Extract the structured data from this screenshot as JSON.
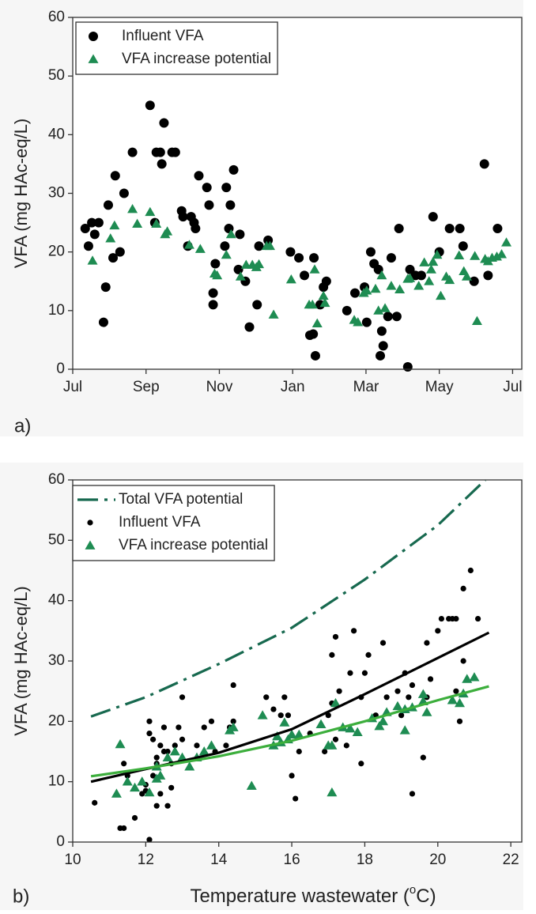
{
  "chart_data": [
    {
      "type": "scatter",
      "label": "a)",
      "ylabel": "VFA (mg HAc-eq/L)",
      "xlim": [
        0,
        12.25
      ],
      "ylim": [
        0,
        60
      ],
      "xticks": [
        {
          "value": 0,
          "label": "Jul"
        },
        {
          "value": 2,
          "label": "Sep"
        },
        {
          "value": 4,
          "label": "Nov"
        },
        {
          "value": 6,
          "label": "Jan"
        },
        {
          "value": 8,
          "label": "Mar"
        },
        {
          "value": 10,
          "label": "May"
        },
        {
          "value": 12,
          "label": "Jul"
        }
      ],
      "yticks": [
        0,
        10,
        20,
        30,
        40,
        50,
        60
      ],
      "legend": "upper left",
      "series": [
        {
          "name": "Influent VFA",
          "kind": "circle",
          "color": "#000000",
          "x": [
            0.34,
            0.43,
            0.52,
            0.6,
            0.71,
            0.84,
            0.9,
            0.97,
            1.1,
            1.16,
            1.29,
            1.4,
            1.63,
            2.11,
            2.24,
            2.28,
            2.39,
            2.43,
            2.49,
            2.71,
            2.8,
            2.97,
            3.01,
            3.14,
            3.23,
            3.31,
            3.35,
            3.44,
            3.66,
            3.72,
            3.83,
            3.83,
            3.89,
            4.15,
            4.19,
            4.26,
            4.3,
            4.39,
            4.52,
            4.56,
            4.71,
            4.82,
            5.03,
            5.08,
            5.33,
            5.94,
            6.17,
            6.32,
            6.47,
            6.56,
            6.58,
            6.62,
            6.75,
            6.84,
            6.92,
            7.48,
            7.7,
            7.96,
            8.02,
            8.13,
            8.22,
            8.34,
            8.39,
            8.43,
            8.47,
            8.6,
            8.69,
            8.84,
            8.9,
            9.14,
            9.2,
            9.35,
            9.51,
            9.83,
            10.0,
            10.28,
            10.56,
            10.65,
            10.95,
            11.23,
            11.33,
            11.59
          ],
          "values": [
            24,
            21,
            25,
            23,
            25,
            8,
            14,
            28,
            19,
            33,
            20,
            30,
            37,
            45,
            25,
            37,
            37,
            35,
            42,
            37,
            37,
            27,
            26,
            21,
            26,
            25,
            24,
            33,
            31,
            28,
            13,
            11,
            18,
            21,
            31,
            24,
            28,
            34,
            17,
            23,
            15,
            7.2,
            11,
            21,
            22,
            20,
            19,
            16,
            5.8,
            6,
            19,
            2.3,
            11,
            14,
            15,
            10,
            13,
            14,
            8,
            20,
            18,
            17,
            2.3,
            6.5,
            4,
            9,
            19,
            9,
            24,
            0.4,
            17,
            16,
            16,
            26,
            20,
            24,
            24,
            21,
            15,
            35,
            16,
            24
          ]
        },
        {
          "name": "VFA increase potential",
          "kind": "triangle",
          "color": "#1e8c52",
          "x": [
            0.54,
            1.03,
            1.14,
            1.63,
            1.76,
            2.11,
            2.28,
            2.52,
            2.58,
            3.18,
            3.48,
            3.87,
            3.94,
            4.19,
            4.32,
            4.58,
            4.73,
            4.9,
            5.01,
            5.08,
            5.29,
            5.38,
            5.48,
            5.96,
            6.45,
            6.54,
            6.6,
            6.67,
            6.84,
            6.88,
            7.68,
            7.78,
            7.94,
            8.02,
            8.26,
            8.34,
            8.43,
            8.52,
            8.69,
            8.92,
            9.14,
            9.2,
            9.44,
            9.59,
            9.72,
            9.78,
            9.83,
            9.94,
            10.04,
            10.19,
            10.28,
            10.54,
            10.67,
            10.75,
            10.97,
            11.03,
            11.25,
            11.33,
            11.44,
            11.57,
            11.7,
            11.83
          ],
          "values": [
            18.5,
            22.3,
            24.5,
            27.3,
            24.8,
            26.8,
            24.8,
            23,
            23.5,
            21.2,
            20.5,
            16.3,
            16,
            19.5,
            23,
            15.8,
            17.8,
            17.8,
            17.4,
            17.9,
            21,
            21,
            9.3,
            15.3,
            11,
            11,
            17,
            7.8,
            12.5,
            11.3,
            8.4,
            8,
            13,
            13.4,
            13.7,
            10,
            16,
            10.4,
            14.2,
            13.6,
            15.4,
            15.5,
            14.2,
            18.2,
            15,
            17,
            18.3,
            19.5,
            12.5,
            15.8,
            15.2,
            19.4,
            16.7,
            15.8,
            19.3,
            8.2,
            18.8,
            18.4,
            19,
            19.2,
            19.6,
            21.6
          ]
        }
      ]
    },
    {
      "type": "scatter",
      "label": "b)",
      "ylabel": "VFA (mg HAc-eq/L)",
      "xlabel": [
        "Temperature wastewater (",
        "o",
        "C)"
      ],
      "xlim": [
        10,
        22.3
      ],
      "ylim": [
        0,
        60
      ],
      "xticks": [
        10,
        12,
        14,
        16,
        18,
        20,
        22
      ],
      "yticks": [
        0,
        10,
        20,
        30,
        40,
        50,
        60
      ],
      "legend": "upper left",
      "series": [
        {
          "name": "Total VFA potential",
          "kind": "line",
          "dash": "dashdot",
          "color": "#17694f",
          "x": [
            10.5,
            12,
            14,
            16,
            18,
            20,
            21.3
          ],
          "values": [
            20.8,
            24,
            29.5,
            35.5,
            43.5,
            52.5,
            60
          ]
        },
        {
          "name": "Influent VFA",
          "kind": "dot",
          "color": "#000000",
          "x": [
            10.6,
            11.3,
            11.4,
            11.4,
            11.5,
            11.7,
            11.9,
            12.0,
            12.0,
            12.1,
            12.1,
            12.1,
            12.2,
            12.2,
            12.3,
            12.3,
            12.3,
            12.4,
            12.4,
            12.5,
            12.5,
            12.6,
            12.6,
            12.7,
            12.7,
            12.8,
            12.9,
            13.0,
            13.0,
            13.4,
            13.6,
            13.8,
            13.9,
            14.2,
            14.3,
            14.4,
            14.4,
            15.3,
            15.5,
            15.7,
            15.8,
            15.9,
            16.0,
            16.1,
            16.2,
            16.5,
            16.9,
            17.0,
            17.1,
            17.1,
            17.2,
            17.2,
            17.3,
            17.5,
            17.6,
            17.7,
            17.9,
            17.9,
            18.0,
            18.1,
            18.3,
            18.5,
            18.6,
            18.9,
            19.0,
            19.1,
            19.2,
            19.3,
            19.3,
            19.6,
            19.7,
            19.7,
            19.8,
            20.0,
            20.1,
            20.3,
            20.4,
            20.5,
            20.5,
            20.6,
            20.7,
            20.7,
            20.9,
            21.1
          ],
          "values": [
            6.5,
            2.3,
            2.3,
            13,
            11,
            4,
            8,
            9.5,
            8.5,
            20,
            0.4,
            18,
            17,
            11,
            14,
            6,
            13,
            8,
            16,
            15,
            19,
            15,
            6,
            9,
            13,
            16,
            19,
            24,
            17,
            16,
            19,
            20,
            15,
            16,
            19,
            26,
            20,
            24,
            22,
            21,
            24,
            21,
            11,
            7.2,
            15,
            18,
            15,
            21,
            23,
            31,
            34,
            17,
            25,
            16,
            28,
            35,
            24,
            13,
            28,
            31,
            21,
            33,
            24,
            25,
            21,
            28,
            24,
            8,
            26,
            14,
            24,
            33,
            27,
            35,
            37,
            37,
            37,
            37,
            25,
            20,
            42,
            30,
            45,
            37
          ]
        },
        {
          "name": "VFA increase potential",
          "kind": "triangle",
          "color": "#1e8c52",
          "x": [
            11.2,
            11.3,
            11.5,
            11.7,
            11.9,
            12.1,
            12.3,
            12.3,
            12.4,
            12.6,
            12.8,
            13.0,
            13.2,
            13.4,
            13.6,
            13.8,
            14.3,
            14.4,
            14.9,
            15.2,
            15.5,
            15.6,
            15.7,
            15.8,
            15.9,
            16.0,
            16.2,
            16.8,
            17.0,
            17.1,
            17.1,
            17.2,
            17.4,
            17.6,
            17.8,
            18.2,
            18.4,
            18.5,
            18.6,
            18.9,
            19.1,
            19.1,
            19.3,
            19.6,
            19.6,
            19.7,
            20.4,
            20.6,
            20.7,
            20.8,
            21.0
          ],
          "values": [
            8,
            16.2,
            10,
            9,
            10,
            8.2,
            10.5,
            12.5,
            11,
            14,
            15,
            14,
            12.5,
            14,
            15,
            16,
            18.5,
            19,
            9.3,
            21,
            16,
            17.5,
            16.5,
            19.8,
            17,
            17.8,
            17.8,
            19.5,
            16,
            8.2,
            16,
            23,
            19,
            18.8,
            18.2,
            20.5,
            19.2,
            20,
            21.5,
            22.5,
            18.5,
            22,
            22.3,
            23.3,
            24.5,
            21.5,
            23.5,
            23,
            24.6,
            27,
            27.3
          ]
        },
        {
          "kind": "line",
          "color": "#000000",
          "x": [
            10.5,
            12,
            14,
            16,
            18,
            20,
            21.4
          ],
          "values": [
            10,
            12.1,
            14.8,
            18.7,
            24.5,
            30.5,
            34.7
          ]
        },
        {
          "kind": "line",
          "color": "#3cae3c",
          "x": [
            10.5,
            12,
            14,
            16,
            18,
            20,
            21.4
          ],
          "values": [
            10.9,
            12.2,
            14.2,
            16.8,
            20,
            23.5,
            25.8
          ]
        }
      ]
    }
  ]
}
